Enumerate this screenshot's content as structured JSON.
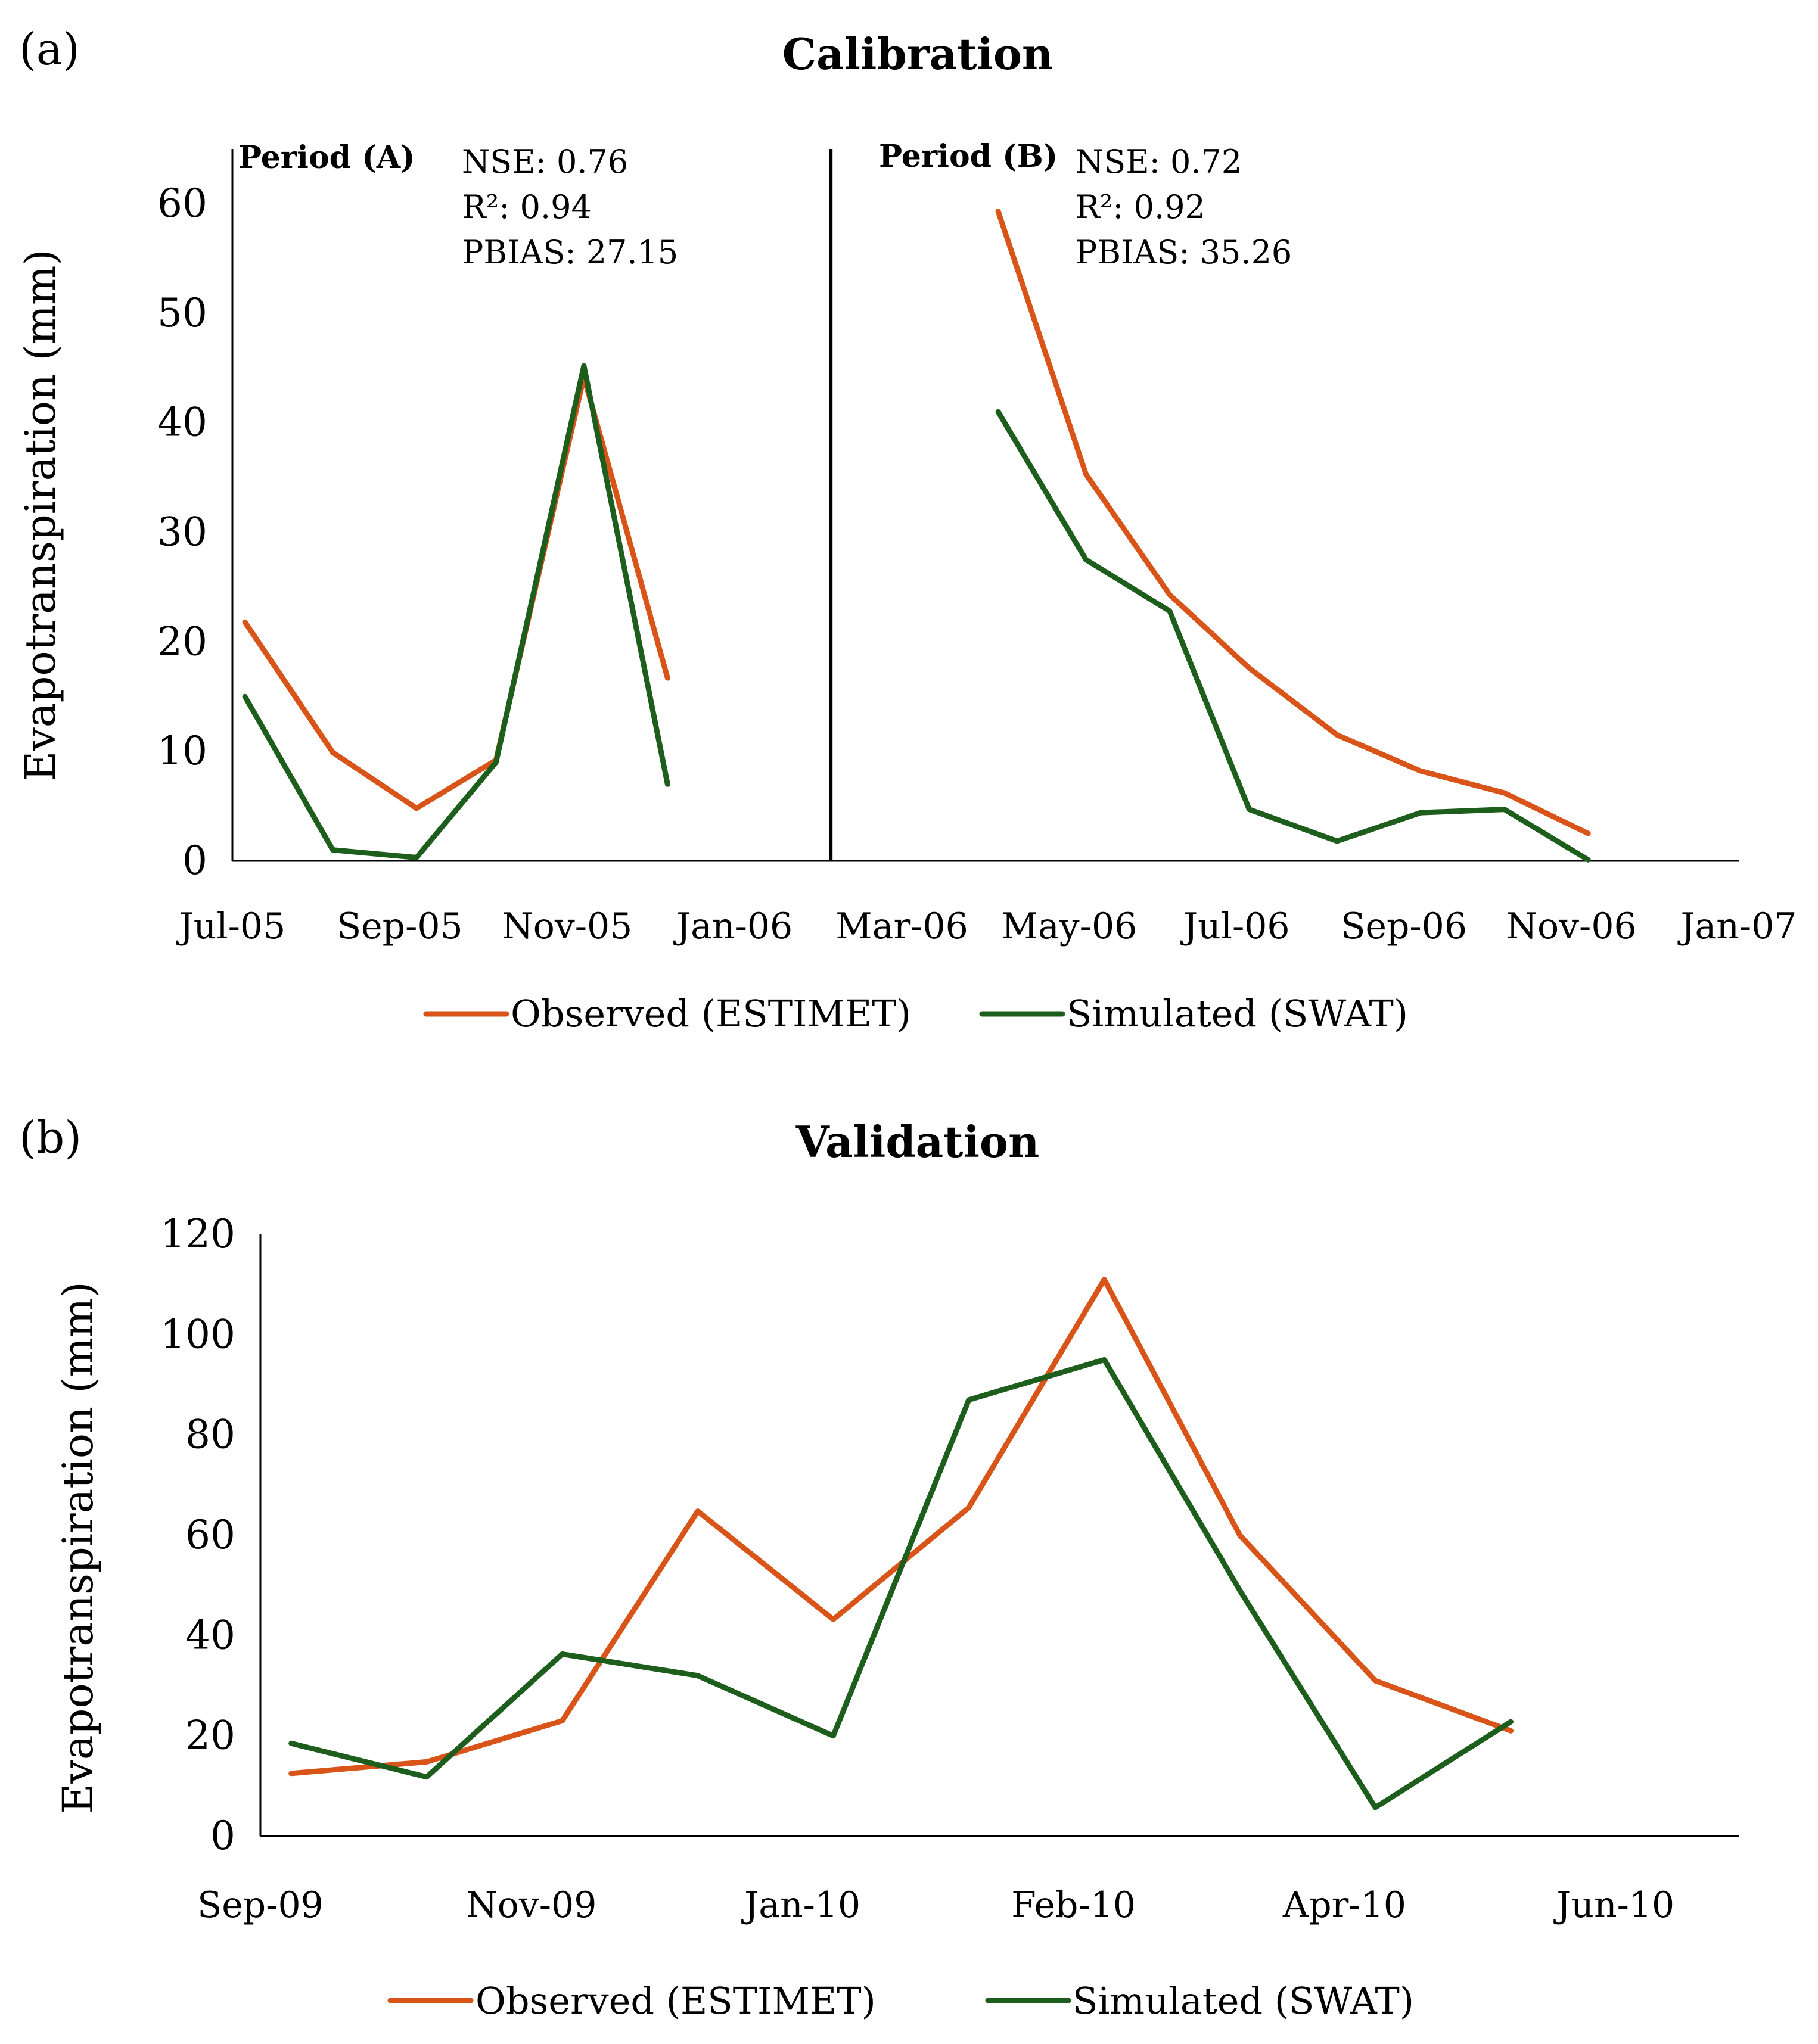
{
  "colors": {
    "observed": "#D95418",
    "simulated": "#1D5E1D",
    "axis": "#000000"
  },
  "chart_data": [
    {
      "type": "line",
      "panel_label": "(a)",
      "title": "Calibration",
      "xlabel": "",
      "ylabel": "Evapotranspiration (mm)",
      "ylim": [
        0,
        65
      ],
      "yticks": [
        0,
        10,
        20,
        30,
        40,
        50,
        60
      ],
      "xlim": [
        0,
        18
      ],
      "xtick_labels": [
        "Jul-05",
        "Sep-05",
        "Nov-05",
        "Jan-06",
        "Mar-06",
        "May-06",
        "Jul-06",
        "Sep-06",
        "Nov-06",
        "Jan-07"
      ],
      "divider_x": 7.15,
      "periods": [
        {
          "label": "Period (A)",
          "stats": [
            "NSE: 0.76",
            "R²: 0.94",
            "PBIAS: 27.15"
          ]
        },
        {
          "label": "Period (B)",
          "stats": [
            "NSE: 0.72",
            "R²: 0.92",
            "PBIAS: 35.26"
          ]
        }
      ],
      "series": [
        {
          "name": "Observed (ESTIMET)",
          "color_key": "observed",
          "segments": [
            {
              "x": [
                0.15,
                1.2,
                2.2,
                3.15,
                4.2,
                5.2
              ],
              "y": [
                21.8,
                9.9,
                4.8,
                9.2,
                44.2,
                16.7
              ]
            },
            {
              "x": [
                9.15,
                10.2,
                11.2,
                12.15,
                13.2,
                14.2,
                15.2,
                16.2
              ],
              "y": [
                59.3,
                35.3,
                24.3,
                17.6,
                11.5,
                8.2,
                6.2,
                2.5
              ]
            }
          ]
        },
        {
          "name": "Simulated (SWAT)",
          "color_key": "simulated",
          "segments": [
            {
              "x": [
                0.15,
                1.2,
                2.2,
                3.15,
                4.2,
                5.2
              ],
              "y": [
                15.0,
                1.0,
                0.3,
                9.0,
                45.2,
                7.0
              ]
            },
            {
              "x": [
                9.15,
                10.2,
                11.2,
                12.15,
                13.2,
                14.2,
                15.2,
                16.2
              ],
              "y": [
                41.0,
                27.5,
                22.8,
                4.7,
                1.8,
                4.4,
                4.7,
                0.1
              ]
            }
          ]
        }
      ],
      "legend": [
        "Observed (ESTIMET)",
        "Simulated (SWAT)"
      ]
    },
    {
      "type": "line",
      "panel_label": "(b)",
      "title": "Validation",
      "xlabel": "",
      "ylabel": "Evapotranspiration (mm)",
      "ylim": [
        0,
        120
      ],
      "yticks": [
        0,
        20,
        40,
        60,
        80,
        100,
        120
      ],
      "xlim": [
        0,
        12
      ],
      "xtick_labels": [
        "Sep-09",
        "Nov-09",
        "Jan-10",
        "Feb-10",
        "Apr-10",
        "Jun-10"
      ],
      "series": [
        {
          "name": "Observed (ESTIMET)",
          "color_key": "observed",
          "segments": [
            {
              "x": [
                0.25,
                1.35,
                2.45,
                3.55,
                4.65,
                5.75,
                6.85,
                7.95,
                9.05,
                10.15
              ],
              "y": [
                12.5,
                14.8,
                23.0,
                64.8,
                43.2,
                65.5,
                111.0,
                60.0,
                31.0,
                21.0
              ]
            }
          ]
        },
        {
          "name": "Simulated (SWAT)",
          "color_key": "simulated",
          "segments": [
            {
              "x": [
                0.25,
                1.35,
                2.45,
                3.55,
                4.65,
                5.75,
                6.85,
                7.95,
                9.05,
                10.15
              ],
              "y": [
                18.5,
                11.8,
                36.3,
                32.0,
                20.0,
                87.0,
                95.0,
                49.0,
                5.7,
                22.8
              ]
            }
          ]
        }
      ],
      "legend": [
        "Observed (ESTIMET)",
        "Simulated (SWAT)"
      ]
    }
  ]
}
